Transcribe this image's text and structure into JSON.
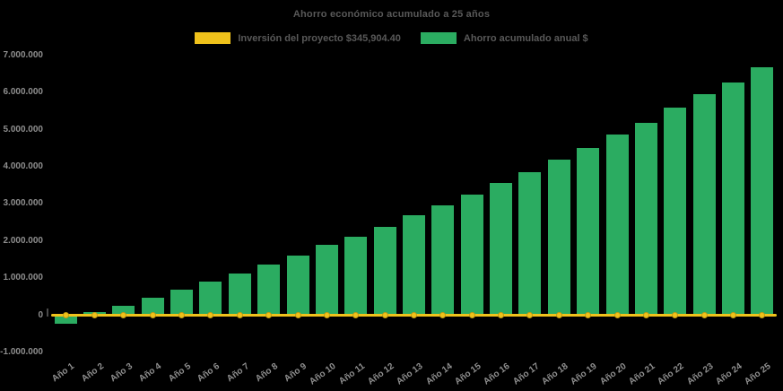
{
  "title": "Ahorro económico acumulado a 25 años",
  "background_color": "#000000",
  "text_colors": {
    "title_and_legend": "#595959",
    "axis_ticks": "#8F8F8F"
  },
  "legend": {
    "items": [
      {
        "label": "Inversión del proyecto $345,904.40",
        "color": "#F0C21B",
        "series_type": "line"
      },
      {
        "label": "Ahorro acumulado anual $",
        "color": "#2BAC61",
        "series_type": "bar"
      }
    ]
  },
  "chart_data": {
    "type": "bar",
    "title": "Ahorro económico acumulado a 25 años",
    "categories": [
      "Año 1",
      "Año 2",
      "Año 3",
      "Año 4",
      "Año 5",
      "Año 6",
      "Año 7",
      "Año 8",
      "Año 9",
      "Año 10",
      "Año 11",
      "Año 12",
      "Año 13",
      "Año 14",
      "Año 15",
      "Año 16",
      "Año 17",
      "Año 18",
      "Año 19",
      "Año 20",
      "Año 21",
      "Año 22",
      "Año 23",
      "Año 24",
      "Año 25"
    ],
    "series": [
      {
        "name": "Ahorro acumulado anual $",
        "type": "bar",
        "color": "#2BAC61",
        "values": [
          -230000,
          70000,
          250000,
          460000,
          680000,
          900000,
          1110000,
          1350000,
          1590000,
          1880000,
          2110000,
          2360000,
          2670000,
          2950000,
          3230000,
          3550000,
          3840000,
          4180000,
          4500000,
          4850000,
          5180000,
          5570000,
          5930000,
          6250000,
          6670000
        ]
      },
      {
        "name": "Inversión del proyecto $345,904.40",
        "type": "line",
        "color": "#F0C21B",
        "marker": "circle",
        "stated_value_in_legend": "345,904.40",
        "plotted_constant": 0
      }
    ],
    "ylim": [
      -1000000,
      7000000
    ],
    "ytick_interval": 1000000,
    "ytick_labels": [
      "7.000.000",
      "6.000.000",
      "5.000.000",
      "4.000.000",
      "3.000.000",
      "2.000.000",
      "1.000.000",
      "0",
      "-1.000.000"
    ],
    "xlabel": "",
    "ylabel": "",
    "grid": false,
    "legend_position": "top"
  }
}
